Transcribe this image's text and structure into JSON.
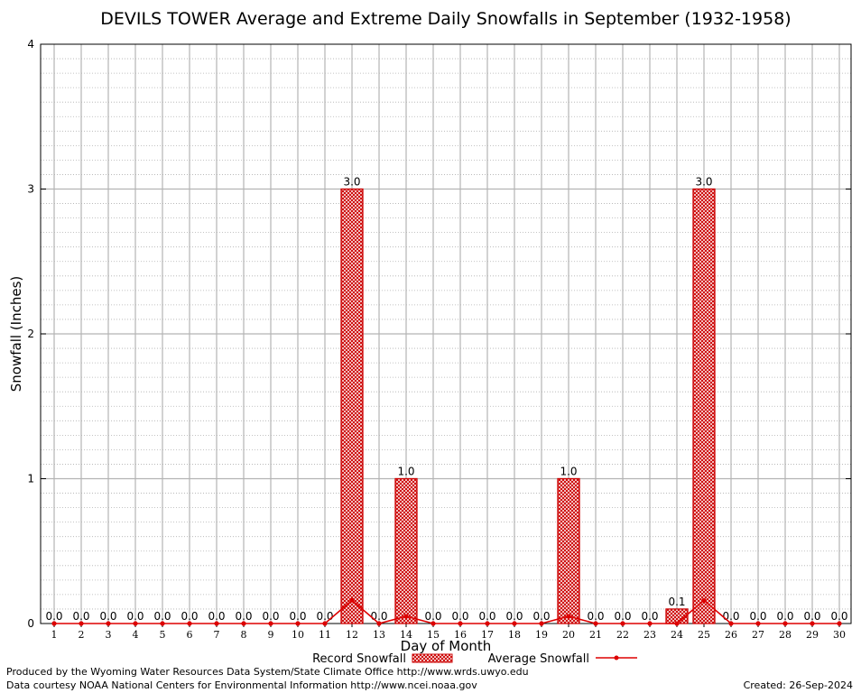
{
  "chart_data": {
    "type": "bar",
    "title": "DEVILS TOWER Average and Extreme Daily Snowfalls in September (1932-1958)",
    "xlabel": "Day of Month",
    "ylabel": "Snowfall (Inches)",
    "ylim": [
      0,
      4
    ],
    "yticks": [
      "0",
      "1",
      "2",
      "3",
      "4"
    ],
    "grid": true,
    "legend_placement": "bottom",
    "categories": [
      "1",
      "2",
      "3",
      "4",
      "5",
      "6",
      "7",
      "8",
      "9",
      "10",
      "11",
      "12",
      "13",
      "14",
      "15",
      "16",
      "17",
      "18",
      "19",
      "20",
      "21",
      "22",
      "23",
      "24",
      "25",
      "26",
      "27",
      "28",
      "29",
      "30"
    ],
    "series": [
      {
        "name": "Record Snowfall",
        "type": "bar",
        "color": "#cc0000",
        "values": [
          0,
          0,
          0,
          0,
          0,
          0,
          0,
          0,
          0,
          0,
          0,
          3.0,
          0,
          1.0,
          0,
          0,
          0,
          0,
          0,
          1.0,
          0,
          0,
          0,
          0.1,
          3.0,
          0,
          0,
          0,
          0,
          0
        ],
        "labels": [
          "0.0",
          "0.0",
          "0.0",
          "0.0",
          "0.0",
          "0.0",
          "0.0",
          "0.0",
          "0.0",
          "0.0",
          "0.0",
          "3.0",
          "0.0",
          "1.0",
          "0.0",
          "0.0",
          "0.0",
          "0.0",
          "0.0",
          "1.0",
          "0.0",
          "0.0",
          "0.0",
          "0.1",
          "3.0",
          "0.0",
          "0.0",
          "0.0",
          "0.0",
          "0.0"
        ]
      },
      {
        "name": "Average Snowfall",
        "type": "line",
        "color": "#dd0000",
        "values": [
          0,
          0,
          0,
          0,
          0,
          0,
          0,
          0,
          0,
          0,
          0,
          0.16,
          0,
          0.05,
          0,
          0,
          0,
          0,
          0,
          0.05,
          0,
          0,
          0,
          0,
          0.16,
          0,
          0,
          0,
          0,
          0
        ]
      }
    ]
  },
  "footer": {
    "produced_by": "Produced by the Wyoming Water Resources Data System/State Climate Office http://www.wrds.uwyo.edu",
    "data_courtesy": "Data courtesy NOAA National Centers for Environmental Information http://www.ncei.noaa.gov",
    "created": "Created:  26-Sep-2024"
  }
}
